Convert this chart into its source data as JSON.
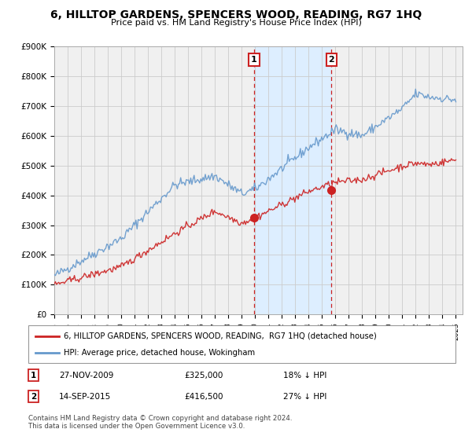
{
  "title": "6, HILLTOP GARDENS, SPENCERS WOOD, READING, RG7 1HQ",
  "subtitle": "Price paid vs. HM Land Registry's House Price Index (HPI)",
  "ylim": [
    0,
    900000
  ],
  "yticks": [
    0,
    100000,
    200000,
    300000,
    400000,
    500000,
    600000,
    700000,
    800000,
    900000
  ],
  "ytick_labels": [
    "£0",
    "£100K",
    "£200K",
    "£300K",
    "£400K",
    "£500K",
    "£600K",
    "£700K",
    "£800K",
    "£900K"
  ],
  "x_start_year": 1995,
  "x_end_year": 2025,
  "hpi_color": "#6699CC",
  "price_color": "#CC2222",
  "bg_color": "#ffffff",
  "plot_bg_color": "#f0f0f0",
  "shade_color": "#ddeeff",
  "grid_color": "#cccccc",
  "sale1_date_num": 2009.92,
  "sale1_price": 325000,
  "sale1_label": "1",
  "sale2_date_num": 2015.71,
  "sale2_price": 416500,
  "sale2_label": "2",
  "legend_line1": "6, HILLTOP GARDENS, SPENCERS WOOD, READING,  RG7 1HQ (detached house)",
  "legend_line2": "HPI: Average price, detached house, Wokingham",
  "annotation1_date": "27-NOV-2009",
  "annotation1_price": "£325,000",
  "annotation1_pct": "18% ↓ HPI",
  "annotation2_date": "14-SEP-2015",
  "annotation2_price": "£416,500",
  "annotation2_pct": "27% ↓ HPI",
  "footer": "Contains HM Land Registry data © Crown copyright and database right 2024.\nThis data is licensed under the Open Government Licence v3.0."
}
